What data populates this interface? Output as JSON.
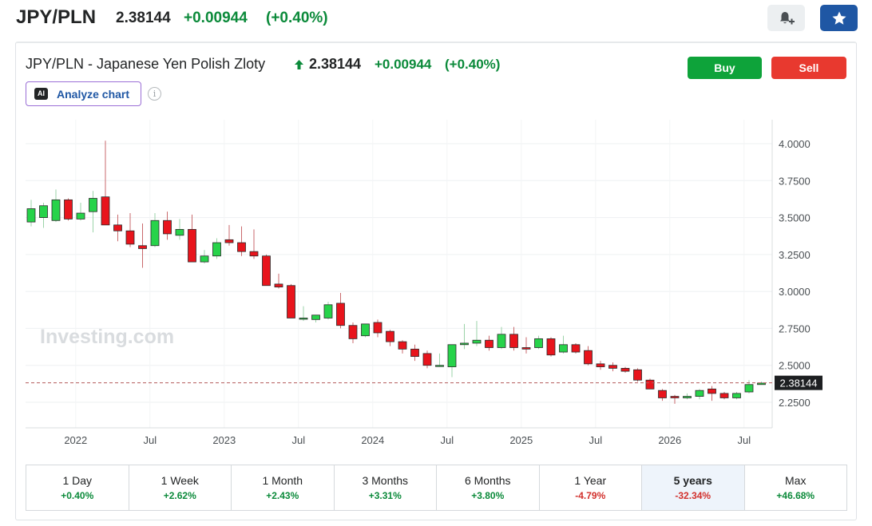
{
  "header": {
    "symbol": "JPY/PLN",
    "price": "2.38144",
    "change": "+0.00944",
    "change_pct": "(+0.40%)"
  },
  "panel": {
    "title": "JPY/PLN - Japanese Yen Polish Zloty",
    "price": "2.38144",
    "change": "+0.00944",
    "change_pct": "(+0.40%)",
    "buy_label": "Buy",
    "sell_label": "Sell",
    "analyze_label": "Analyze chart",
    "ai_badge": "AI",
    "info_glyph": "i"
  },
  "colors": {
    "up": "#27d34a",
    "down": "#e8141c",
    "positive_text": "#0b8a3a",
    "negative_text": "#d2302c",
    "accent": "#1f57a4"
  },
  "icons": [
    "bell-plus-icon",
    "star-icon",
    "arrow-up-icon",
    "info-icon"
  ],
  "chart_data": {
    "type": "candlestick",
    "interval": "monthly",
    "watermark": "Investing.com",
    "ylim": [
      2.05,
      4.15
    ],
    "y_ticks": [
      "4.0000",
      "3.7500",
      "3.5000",
      "3.2500",
      "3.0000",
      "2.7500",
      "2.5000",
      "2.2500"
    ],
    "x_ticks": [
      "2022",
      "Jul",
      "2023",
      "Jul",
      "2024",
      "Jul",
      "2025",
      "Jul",
      "2026",
      "Jul"
    ],
    "current_price_label": "2.38144",
    "current_price": 2.38144,
    "candles": [
      {
        "o": 3.47,
        "h": 3.62,
        "l": 3.44,
        "c": 3.56
      },
      {
        "o": 3.5,
        "h": 3.6,
        "l": 3.43,
        "c": 3.58
      },
      {
        "o": 3.48,
        "h": 3.69,
        "l": 3.47,
        "c": 3.62
      },
      {
        "o": 3.62,
        "h": 3.63,
        "l": 3.48,
        "c": 3.49
      },
      {
        "o": 3.49,
        "h": 3.6,
        "l": 3.48,
        "c": 3.53
      },
      {
        "o": 3.54,
        "h": 3.68,
        "l": 3.4,
        "c": 3.63
      },
      {
        "o": 3.64,
        "h": 4.02,
        "l": 3.45,
        "c": 3.45
      },
      {
        "o": 3.45,
        "h": 3.52,
        "l": 3.34,
        "c": 3.41
      },
      {
        "o": 3.41,
        "h": 3.53,
        "l": 3.3,
        "c": 3.32
      },
      {
        "o": 3.31,
        "h": 3.46,
        "l": 3.16,
        "c": 3.29
      },
      {
        "o": 3.31,
        "h": 3.53,
        "l": 3.3,
        "c": 3.48
      },
      {
        "o": 3.48,
        "h": 3.54,
        "l": 3.35,
        "c": 3.39
      },
      {
        "o": 3.38,
        "h": 3.49,
        "l": 3.35,
        "c": 3.42
      },
      {
        "o": 3.42,
        "h": 3.52,
        "l": 3.2,
        "c": 3.2
      },
      {
        "o": 3.2,
        "h": 3.28,
        "l": 3.19,
        "c": 3.24
      },
      {
        "o": 3.24,
        "h": 3.36,
        "l": 3.22,
        "c": 3.33
      },
      {
        "o": 3.35,
        "h": 3.45,
        "l": 3.31,
        "c": 3.33
      },
      {
        "o": 3.33,
        "h": 3.44,
        "l": 3.24,
        "c": 3.27
      },
      {
        "o": 3.27,
        "h": 3.42,
        "l": 3.22,
        "c": 3.24
      },
      {
        "o": 3.24,
        "h": 3.25,
        "l": 3.04,
        "c": 3.04
      },
      {
        "o": 3.05,
        "h": 3.12,
        "l": 3.02,
        "c": 3.03
      },
      {
        "o": 3.04,
        "h": 3.05,
        "l": 2.82,
        "c": 2.82
      },
      {
        "o": 2.82,
        "h": 2.9,
        "l": 2.8,
        "c": 2.82
      },
      {
        "o": 2.81,
        "h": 2.83,
        "l": 2.79,
        "c": 2.84
      },
      {
        "o": 2.82,
        "h": 2.93,
        "l": 2.81,
        "c": 2.91
      },
      {
        "o": 2.92,
        "h": 2.99,
        "l": 2.75,
        "c": 2.77
      },
      {
        "o": 2.77,
        "h": 2.79,
        "l": 2.65,
        "c": 2.68
      },
      {
        "o": 2.7,
        "h": 2.78,
        "l": 2.69,
        "c": 2.78
      },
      {
        "o": 2.79,
        "h": 2.81,
        "l": 2.69,
        "c": 2.72
      },
      {
        "o": 2.73,
        "h": 2.74,
        "l": 2.63,
        "c": 2.66
      },
      {
        "o": 2.66,
        "h": 2.67,
        "l": 2.58,
        "c": 2.61
      },
      {
        "o": 2.61,
        "h": 2.64,
        "l": 2.53,
        "c": 2.56
      },
      {
        "o": 2.58,
        "h": 2.6,
        "l": 2.48,
        "c": 2.5
      },
      {
        "o": 2.5,
        "h": 2.58,
        "l": 2.49,
        "c": 2.5
      },
      {
        "o": 2.49,
        "h": 2.64,
        "l": 2.42,
        "c": 2.64
      },
      {
        "o": 2.64,
        "h": 2.78,
        "l": 2.61,
        "c": 2.65
      },
      {
        "o": 2.65,
        "h": 2.8,
        "l": 2.63,
        "c": 2.67
      },
      {
        "o": 2.67,
        "h": 2.7,
        "l": 2.6,
        "c": 2.62
      },
      {
        "o": 2.62,
        "h": 2.76,
        "l": 2.61,
        "c": 2.71
      },
      {
        "o": 2.71,
        "h": 2.76,
        "l": 2.6,
        "c": 2.62
      },
      {
        "o": 2.62,
        "h": 2.69,
        "l": 2.58,
        "c": 2.61
      },
      {
        "o": 2.62,
        "h": 2.7,
        "l": 2.61,
        "c": 2.68
      },
      {
        "o": 2.68,
        "h": 2.69,
        "l": 2.56,
        "c": 2.57
      },
      {
        "o": 2.59,
        "h": 2.7,
        "l": 2.58,
        "c": 2.64
      },
      {
        "o": 2.64,
        "h": 2.65,
        "l": 2.58,
        "c": 2.59
      },
      {
        "o": 2.6,
        "h": 2.63,
        "l": 2.5,
        "c": 2.51
      },
      {
        "o": 2.51,
        "h": 2.53,
        "l": 2.47,
        "c": 2.49
      },
      {
        "o": 2.5,
        "h": 2.52,
        "l": 2.46,
        "c": 2.48
      },
      {
        "o": 2.48,
        "h": 2.49,
        "l": 2.45,
        "c": 2.46
      },
      {
        "o": 2.47,
        "h": 2.48,
        "l": 2.39,
        "c": 2.4
      },
      {
        "o": 2.4,
        "h": 2.41,
        "l": 2.34,
        "c": 2.34
      },
      {
        "o": 2.33,
        "h": 2.34,
        "l": 2.26,
        "c": 2.28
      },
      {
        "o": 2.29,
        "h": 2.3,
        "l": 2.24,
        "c": 2.28
      },
      {
        "o": 2.28,
        "h": 2.31,
        "l": 2.27,
        "c": 2.29
      },
      {
        "o": 2.29,
        "h": 2.34,
        "l": 2.27,
        "c": 2.33
      },
      {
        "o": 2.34,
        "h": 2.36,
        "l": 2.26,
        "c": 2.31
      },
      {
        "o": 2.31,
        "h": 2.32,
        "l": 2.27,
        "c": 2.28
      },
      {
        "o": 2.28,
        "h": 2.32,
        "l": 2.27,
        "c": 2.31
      },
      {
        "o": 2.32,
        "h": 2.4,
        "l": 2.31,
        "c": 2.37
      },
      {
        "o": 2.37,
        "h": 2.39,
        "l": 2.37,
        "c": 2.38
      }
    ]
  },
  "timeframes": [
    {
      "label": "1 Day",
      "change": "+0.40%",
      "sign": "pos",
      "active": false
    },
    {
      "label": "1 Week",
      "change": "+2.62%",
      "sign": "pos",
      "active": false
    },
    {
      "label": "1 Month",
      "change": "+2.43%",
      "sign": "pos",
      "active": false
    },
    {
      "label": "3 Months",
      "change": "+3.31%",
      "sign": "pos",
      "active": false
    },
    {
      "label": "6 Months",
      "change": "+3.80%",
      "sign": "pos",
      "active": false
    },
    {
      "label": "1 Year",
      "change": "-4.79%",
      "sign": "neg",
      "active": false
    },
    {
      "label": "5 years",
      "change": "-32.34%",
      "sign": "neg",
      "active": true
    },
    {
      "label": "Max",
      "change": "+46.68%",
      "sign": "pos",
      "active": false
    }
  ]
}
